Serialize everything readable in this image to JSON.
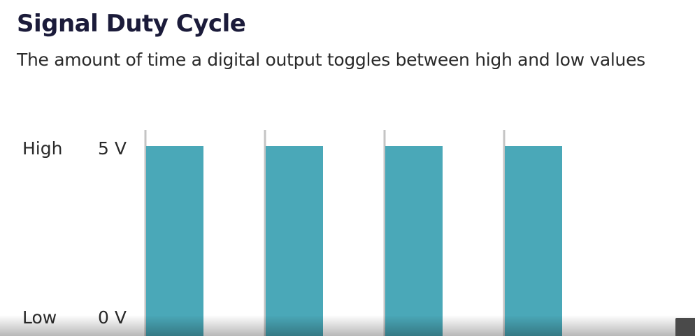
{
  "header": {
    "title": "Signal Duty Cycle",
    "subtitle": "The amount of time a digital output toggles between high and low values"
  },
  "signal": {
    "high_label": "High",
    "low_label": "Low",
    "high_voltage": "5 V",
    "low_voltage": "0 V",
    "pulse_count": 4,
    "duty_cycle": 0.48,
    "pulse_color": "#4aa8b8",
    "marker_color": "#c4c4c4"
  }
}
